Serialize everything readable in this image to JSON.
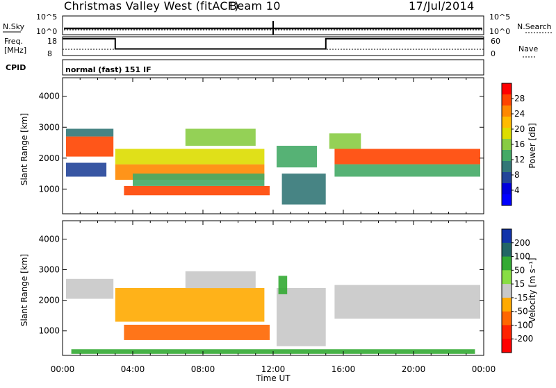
{
  "header": {
    "station": "Christmas Valley West (fitACF)",
    "beam": "Beam 10",
    "date": "17/Jul/2014"
  },
  "noise_panel": {
    "left_label": "N.Sky",
    "right_label": "N.Search",
    "left_ticks": [
      "10^5",
      "10^0"
    ],
    "right_ticks": [
      "10^5",
      "10^0"
    ]
  },
  "freq_panel": {
    "left_label_1": "Freq.",
    "left_label_2": "[MHz]",
    "right_label": "Nave",
    "left_ticks": [
      "18",
      "8"
    ],
    "right_ticks": [
      "60",
      "0"
    ],
    "freq_mhz": [
      {
        "t": 0,
        "v": 17
      },
      {
        "t": 3.0,
        "v": 17
      },
      {
        "t": 3.0,
        "v": 11.5
      },
      {
        "t": 15.0,
        "v": 11.5
      },
      {
        "t": 15.0,
        "v": 17
      },
      {
        "t": 24,
        "v": 17
      }
    ],
    "nave": [
      {
        "t": 0,
        "v": 20
      },
      {
        "t": 24,
        "v": 20
      }
    ]
  },
  "cpid": {
    "label": "CPID",
    "mode": "normal (fast) 151 IF"
  },
  "colorbars": {
    "power": {
      "title": "Power [dB]",
      "labels": [
        "28",
        "24",
        "20",
        "16",
        "12",
        "8",
        "4"
      ],
      "colors": [
        "#ff0000",
        "#ff4400",
        "#ff8800",
        "#ffbb00",
        "#dddd00",
        "#88cc44",
        "#44aa66",
        "#337777",
        "#224499",
        "#0000dd",
        "#0000ff"
      ]
    },
    "velocity": {
      "title": "Velocity [m s⁻¹]",
      "labels": [
        "200",
        "100",
        "50",
        "15",
        "-15",
        "-50",
        "-100",
        "-200"
      ],
      "colors": [
        "#1133aa",
        "#226666",
        "#33aa33",
        "#88dd44",
        "#c8c8c8",
        "#ffaa00",
        "#ff6600",
        "#ff2200",
        "#ff0000"
      ]
    }
  },
  "chart_data": [
    {
      "type": "heatmap",
      "name": "power",
      "ylabel": "Slant Range [km]",
      "y_ticks": [
        "1000",
        "2000",
        "3000",
        "4000"
      ],
      "ylim": [
        200,
        4600
      ],
      "x_ticks": [
        "00:00",
        "04:00",
        "08:00",
        "12:00",
        "16:00",
        "20:00",
        "00:00"
      ],
      "xlim": [
        0,
        24
      ],
      "regions": [
        {
          "t0": 0.2,
          "t1": 2.9,
          "r0": 2050,
          "r1": 2700,
          "v": 26
        },
        {
          "t0": 0.2,
          "t1": 2.9,
          "r0": 2700,
          "r1": 2950,
          "v": 10
        },
        {
          "t0": 0.2,
          "t1": 2.5,
          "r0": 1400,
          "r1": 1850,
          "v": 6
        },
        {
          "t0": 3.0,
          "t1": 11.5,
          "r0": 1300,
          "r1": 1800,
          "v": 24
        },
        {
          "t0": 3.0,
          "t1": 11.5,
          "r0": 1800,
          "r1": 2300,
          "v": 18
        },
        {
          "t0": 3.5,
          "t1": 11.8,
          "r0": 800,
          "r1": 1100,
          "v": 26
        },
        {
          "t0": 4.0,
          "t1": 11.5,
          "r0": 1100,
          "r1": 1500,
          "v": 12
        },
        {
          "t0": 7.0,
          "t1": 11.0,
          "r0": 2400,
          "r1": 2950,
          "v": 14
        },
        {
          "t0": 12.2,
          "t1": 14.5,
          "r0": 1700,
          "r1": 2400,
          "v": 12
        },
        {
          "t0": 12.5,
          "t1": 15.0,
          "r0": 500,
          "r1": 1500,
          "v": 8
        },
        {
          "t0": 15.5,
          "t1": 23.8,
          "r0": 1800,
          "r1": 2300,
          "v": 26
        },
        {
          "t0": 15.5,
          "t1": 23.8,
          "r0": 1400,
          "r1": 1800,
          "v": 12
        },
        {
          "t0": 15.2,
          "t1": 17.0,
          "r0": 2300,
          "r1": 2800,
          "v": 16
        }
      ]
    },
    {
      "type": "heatmap",
      "name": "velocity",
      "ylabel": "Slant Range [km]",
      "y_ticks": [
        "1000",
        "2000",
        "3000",
        "4000"
      ],
      "ylim": [
        200,
        4600
      ],
      "x_ticks": [
        "00:00",
        "04:00",
        "08:00",
        "12:00",
        "16:00",
        "20:00",
        "00:00"
      ],
      "xlim": [
        0,
        24
      ],
      "x_axis_label": "Time UT",
      "regions": [
        {
          "t0": 0.2,
          "t1": 2.9,
          "r0": 2050,
          "r1": 2700,
          "v": 0
        },
        {
          "t0": 3.0,
          "t1": 11.5,
          "r0": 1300,
          "r1": 2400,
          "v": -40
        },
        {
          "t0": 3.5,
          "t1": 11.8,
          "r0": 700,
          "r1": 1200,
          "v": -60
        },
        {
          "t0": 7.0,
          "t1": 11.0,
          "r0": 2400,
          "r1": 2950,
          "v": 0
        },
        {
          "t0": 12.2,
          "t1": 15.0,
          "r0": 500,
          "r1": 2400,
          "v": 0
        },
        {
          "t0": 12.3,
          "t1": 12.8,
          "r0": 2200,
          "r1": 2800,
          "v": 40
        },
        {
          "t0": 15.5,
          "t1": 23.8,
          "r0": 1400,
          "r1": 2500,
          "v": 0
        },
        {
          "t0": 0.5,
          "t1": 23.5,
          "r0": 250,
          "r1": 400,
          "v": 40
        }
      ]
    }
  ]
}
